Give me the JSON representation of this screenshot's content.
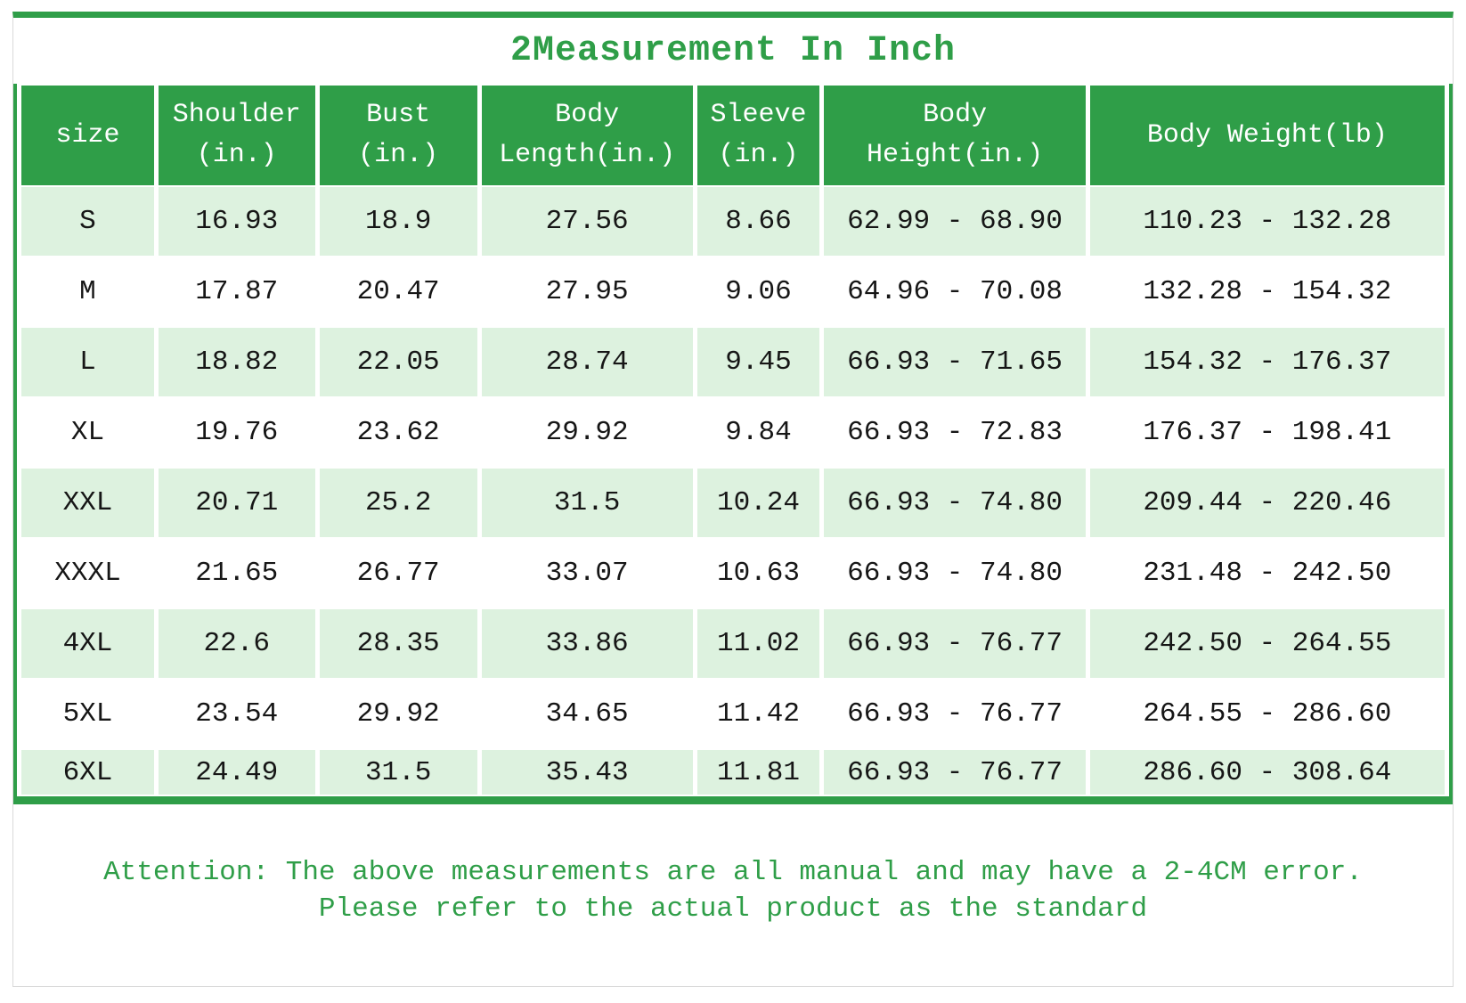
{
  "title": "2Measurement In Inch",
  "colors": {
    "accent_green": "#2f9e48",
    "row_light_green": "#ddf2df",
    "header_text": "#ffffff"
  },
  "chart_data": {
    "type": "table",
    "title": "2Measurement In Inch",
    "columns": [
      {
        "lines": [
          "size"
        ]
      },
      {
        "lines": [
          "Shoulder",
          "(in.)"
        ]
      },
      {
        "lines": [
          "Bust",
          "(in.)"
        ]
      },
      {
        "lines": [
          "Body",
          "Length(in.)"
        ]
      },
      {
        "lines": [
          "Sleeve",
          "(in.)"
        ]
      },
      {
        "lines": [
          "Body",
          "Height(in.)"
        ]
      },
      {
        "lines": [
          "Body Weight(lb)"
        ]
      }
    ],
    "rows": [
      [
        "S",
        "16.93",
        "18.9",
        "27.56",
        "8.66",
        "62.99 - 68.90",
        "110.23 - 132.28"
      ],
      [
        "M",
        "17.87",
        "20.47",
        "27.95",
        "9.06",
        "64.96 - 70.08",
        "132.28 - 154.32"
      ],
      [
        "L",
        "18.82",
        "22.05",
        "28.74",
        "9.45",
        "66.93 - 71.65",
        "154.32 - 176.37"
      ],
      [
        "XL",
        "19.76",
        "23.62",
        "29.92",
        "9.84",
        "66.93 - 72.83",
        "176.37 - 198.41"
      ],
      [
        "XXL",
        "20.71",
        "25.2",
        "31.5",
        "10.24",
        "66.93 - 74.80",
        "209.44 - 220.46"
      ],
      [
        "XXXL",
        "21.65",
        "26.77",
        "33.07",
        "10.63",
        "66.93 - 74.80",
        "231.48 - 242.50"
      ],
      [
        "4XL",
        "22.6",
        "28.35",
        "33.86",
        "11.02",
        "66.93 - 76.77",
        "242.50 - 264.55"
      ],
      [
        "5XL",
        "23.54",
        "29.92",
        "34.65",
        "11.42",
        "66.93 - 76.77",
        "264.55 - 286.60"
      ],
      [
        "6XL",
        "24.49",
        "31.5",
        "35.43",
        "11.81",
        "66.93 - 76.77",
        "286.60 - 308.64"
      ]
    ]
  },
  "note": {
    "line1": "Attention: The above measurements are all manual and may have a 2-4CM error.",
    "line2": "Please refer to the actual product as the standard"
  }
}
